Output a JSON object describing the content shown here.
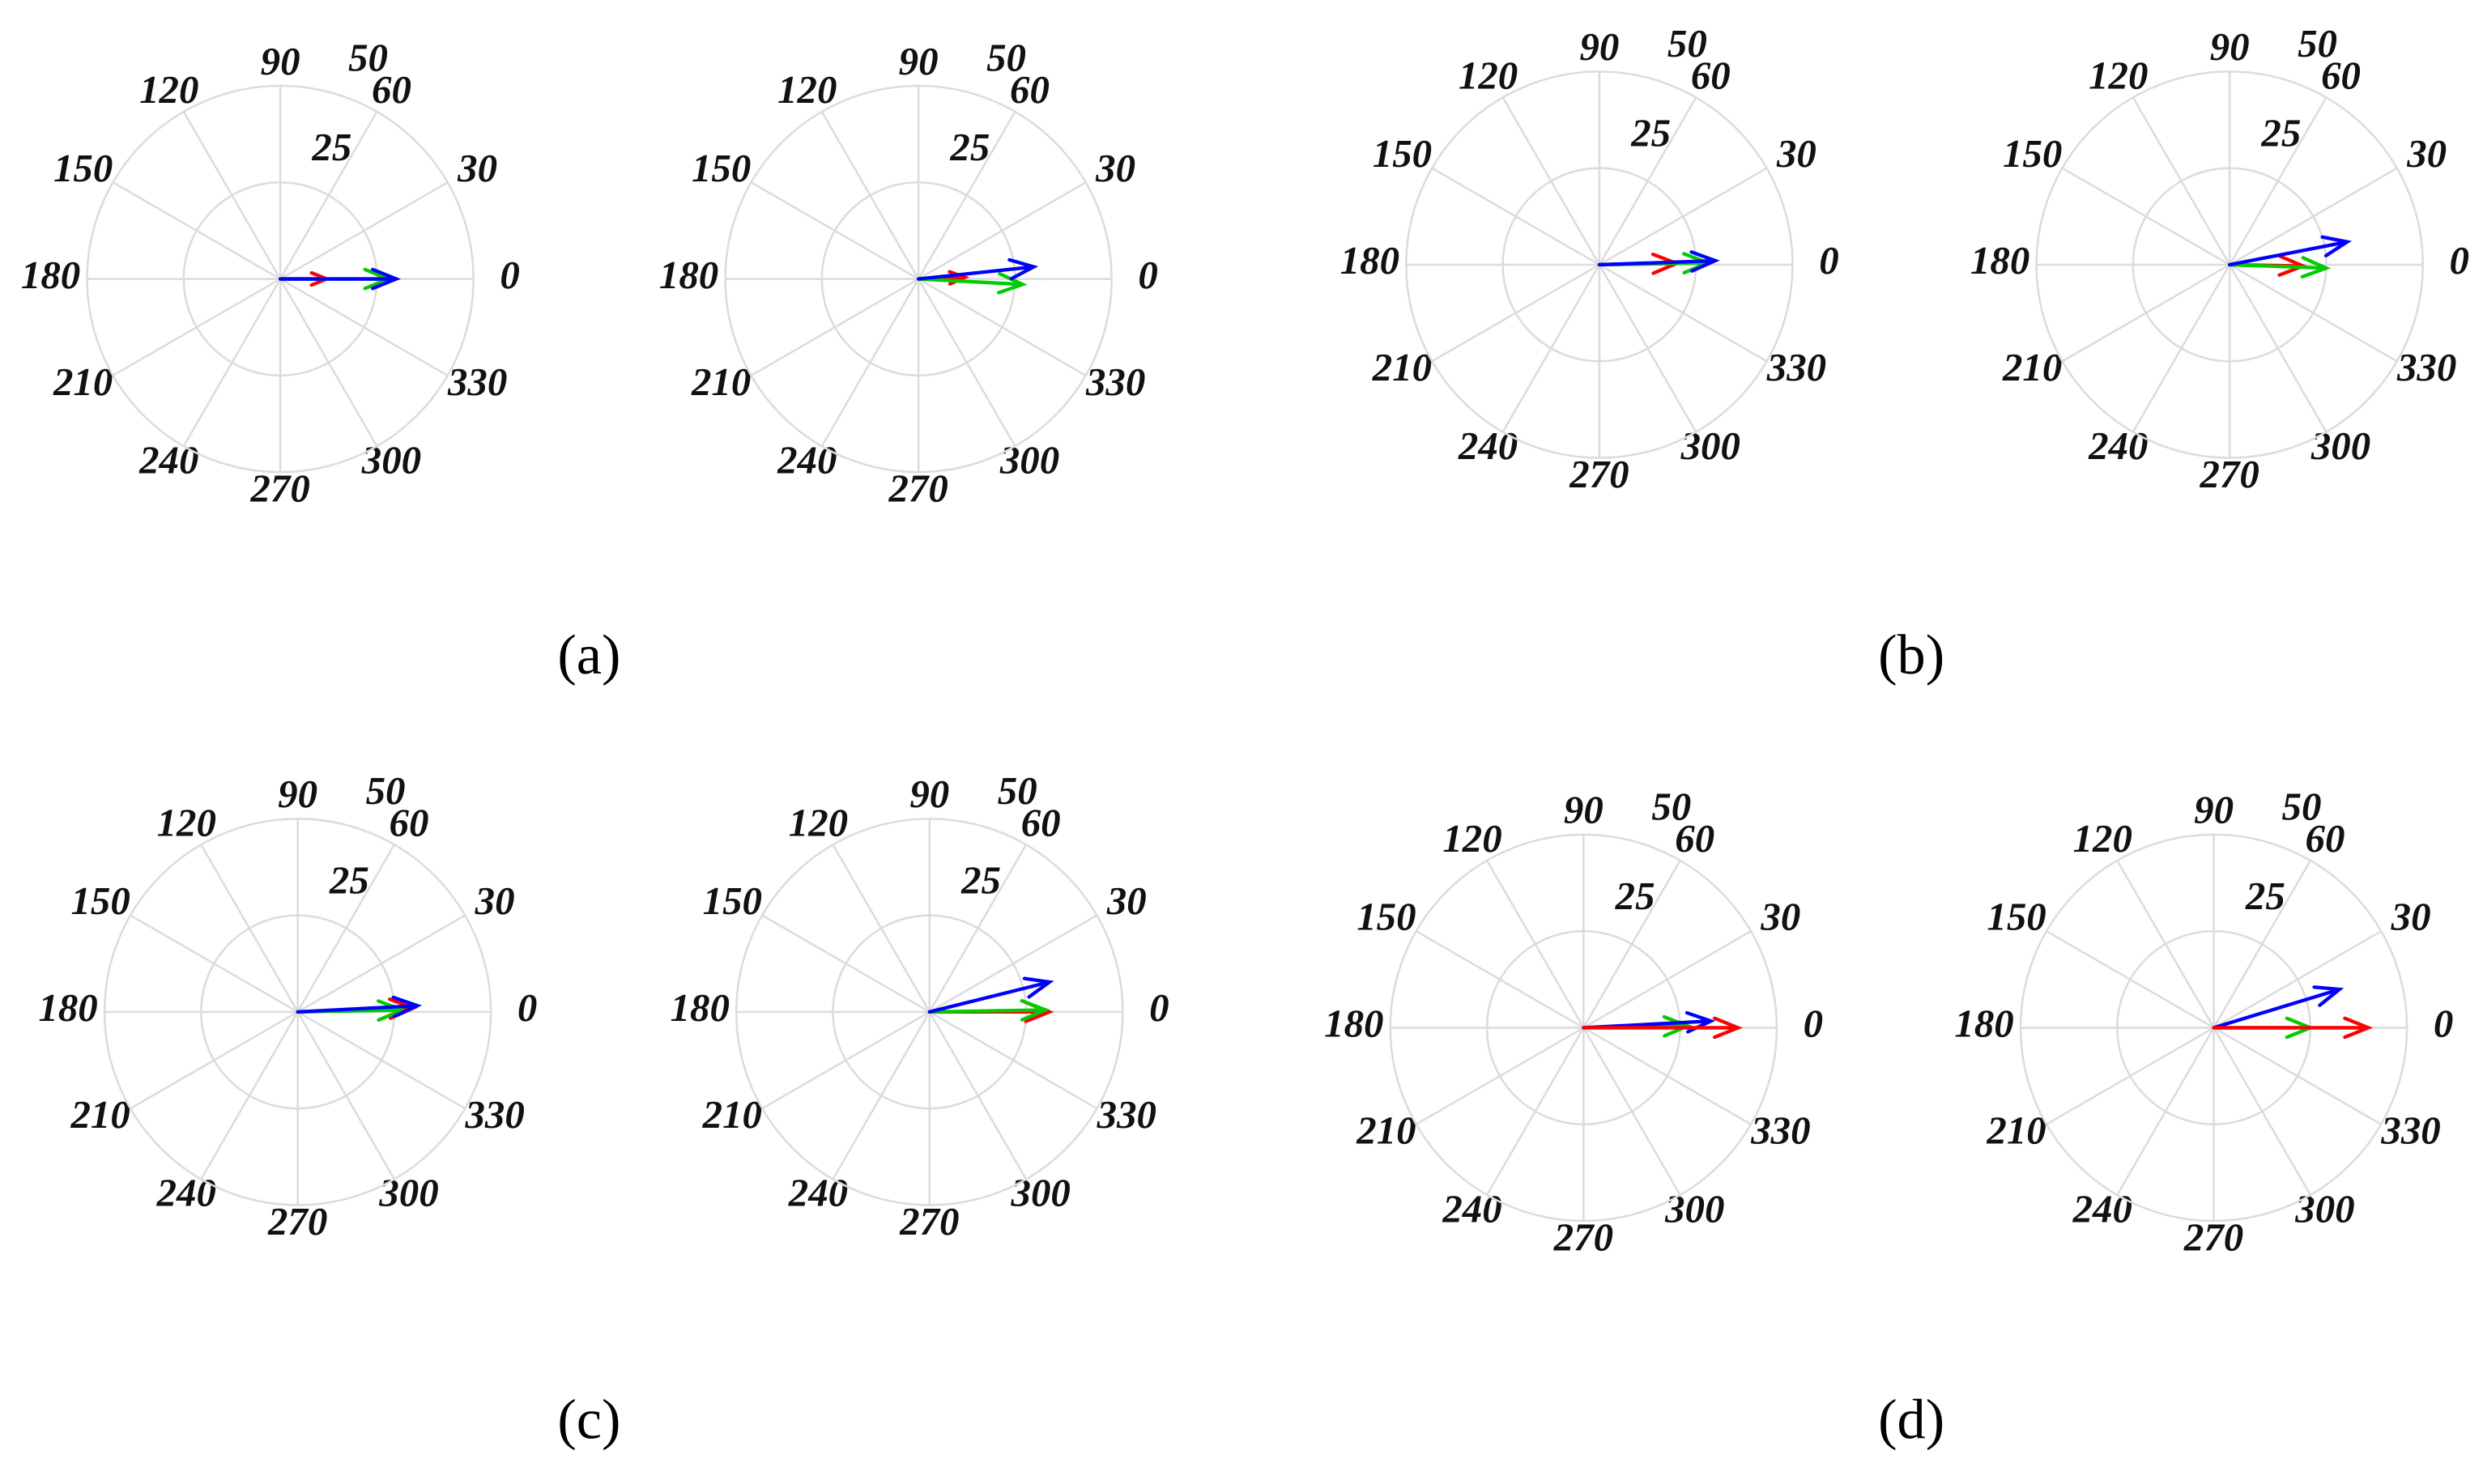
{
  "panel_labels": [
    "(a)",
    "(b)",
    "(c)",
    "(d)"
  ],
  "chart_data": [
    {
      "type": "compass",
      "rlim": [
        0,
        50
      ],
      "rticks": [
        25,
        50
      ],
      "thetaticks": [
        0,
        30,
        60,
        90,
        120,
        150,
        180,
        210,
        240,
        270,
        300,
        330
      ],
      "series": [
        {
          "color": "#ff0000",
          "r": 12,
          "theta": 0
        },
        {
          "color": "#00cc00",
          "r": 28,
          "theta": 0
        },
        {
          "color": "#0000ff",
          "r": 30,
          "theta": 0
        }
      ]
    },
    {
      "type": "compass",
      "rlim": [
        0,
        50
      ],
      "rticks": [
        25,
        50
      ],
      "thetaticks": [
        0,
        30,
        60,
        90,
        120,
        150,
        180,
        210,
        240,
        270,
        300,
        330
      ],
      "series": [
        {
          "color": "#ff0000",
          "r": 12,
          "theta": 2
        },
        {
          "color": "#00cc00",
          "r": 27,
          "theta": 357
        },
        {
          "color": "#0000ff",
          "r": 30,
          "theta": 6
        }
      ]
    },
    {
      "type": "compass",
      "rlim": [
        0,
        50
      ],
      "rticks": [
        25,
        50
      ],
      "thetaticks": [
        0,
        30,
        60,
        90,
        120,
        150,
        180,
        210,
        240,
        270,
        300,
        330
      ],
      "series": [
        {
          "color": "#ff0000",
          "r": 20,
          "theta": 1
        },
        {
          "color": "#00cc00",
          "r": 28,
          "theta": 1
        },
        {
          "color": "#0000ff",
          "r": 30,
          "theta": 2
        }
      ]
    },
    {
      "type": "compass",
      "rlim": [
        0,
        50
      ],
      "rticks": [
        25,
        50
      ],
      "thetaticks": [
        0,
        30,
        60,
        90,
        120,
        150,
        180,
        210,
        240,
        270,
        300,
        330
      ],
      "series": [
        {
          "color": "#ff0000",
          "r": 19,
          "theta": 359
        },
        {
          "color": "#00cc00",
          "r": 25,
          "theta": 358
        },
        {
          "color": "#0000ff",
          "r": 31,
          "theta": 11
        }
      ]
    },
    {
      "type": "compass",
      "rlim": [
        0,
        50
      ],
      "rticks": [
        25,
        50
      ],
      "thetaticks": [
        0,
        30,
        60,
        90,
        120,
        150,
        180,
        210,
        240,
        270,
        300,
        330
      ],
      "series": [
        {
          "color": "#ff0000",
          "r": 30,
          "theta": 2
        },
        {
          "color": "#00cc00",
          "r": 27,
          "theta": 1
        },
        {
          "color": "#0000ff",
          "r": 31,
          "theta": 3
        }
      ]
    },
    {
      "type": "compass",
      "rlim": [
        0,
        50
      ],
      "rticks": [
        25,
        50
      ],
      "thetaticks": [
        0,
        30,
        60,
        90,
        120,
        150,
        180,
        210,
        240,
        270,
        300,
        330
      ],
      "series": [
        {
          "color": "#ff0000",
          "r": 31,
          "theta": 0
        },
        {
          "color": "#00cc00",
          "r": 30,
          "theta": 1
        },
        {
          "color": "#0000ff",
          "r": 32,
          "theta": 14
        }
      ]
    },
    {
      "type": "compass",
      "rlim": [
        0,
        50
      ],
      "rticks": [
        25,
        50
      ],
      "thetaticks": [
        0,
        30,
        60,
        90,
        120,
        150,
        180,
        210,
        240,
        270,
        300,
        330
      ],
      "series": [
        {
          "color": "#00cc00",
          "r": 27,
          "theta": 1
        },
        {
          "color": "#0000ff",
          "r": 33,
          "theta": 3
        },
        {
          "color": "#ff0000",
          "r": 40,
          "theta": 0
        }
      ]
    },
    {
      "type": "compass",
      "rlim": [
        0,
        50
      ],
      "rticks": [
        25,
        50
      ],
      "thetaticks": [
        0,
        30,
        60,
        90,
        120,
        150,
        180,
        210,
        240,
        270,
        300,
        330
      ],
      "series": [
        {
          "color": "#00cc00",
          "r": 25,
          "theta": 0
        },
        {
          "color": "#0000ff",
          "r": 34,
          "theta": 17
        },
        {
          "color": "#ff0000",
          "r": 40,
          "theta": 0
        }
      ]
    }
  ]
}
